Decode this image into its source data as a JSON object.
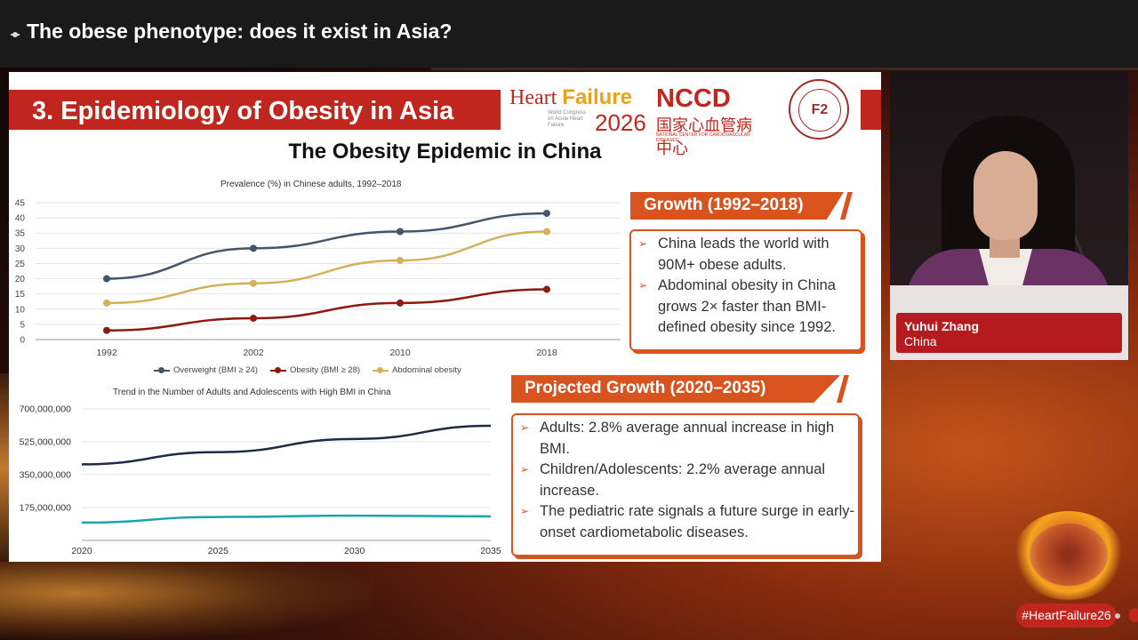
{
  "header": {
    "title": "The obese phenotype: does it exist in Asia?"
  },
  "slide": {
    "section_title": "3. Epidemiology of Obesity in Asia",
    "logo_hf": {
      "line1a": "Heart",
      "line1b": "Failure",
      "year": "2026",
      "small": "World Congress on Acute Heart Failure"
    },
    "logo_nccd": {
      "name": "NCCD",
      "chinese": "国家心血管病中心",
      "small": "NATIONAL CENTER FOR CARDIOVASCULAR DISEASES"
    },
    "main_title": "The Obesity Epidemic in China",
    "chart1_title": "Prevalence (%) in Chinese adults, 1992–2018",
    "chart2_title": "Trend in the Number of Adults and Adolescents with High BMI in China",
    "growth": {
      "heading": "Growth (1992–2018)",
      "bullets": [
        "China leads the world with 90M+ obese adults.",
        "Abdominal obesity in China grows 2× faster than BMI-defined obesity since 1992."
      ]
    },
    "projected": {
      "heading": "Projected Growth (2020–2035)",
      "bullets": [
        "Adults: 2.8% average annual increase in high BMI.",
        "Children/Adolescents: 2.2% average annual increase.",
        "The pediatric rate signals a future surge in early-onset cardiometabolic diseases."
      ]
    }
  },
  "speaker": {
    "name": "Yuhui Zhang",
    "country": "China"
  },
  "hashtag": "#HeartFailure26",
  "colors": {
    "red": "#c0261e",
    "orange": "#d9531e",
    "overweight": "#44546a",
    "obesity": "#8b1a10",
    "abdominal": "#d4b05a",
    "adults": "#1f2b45",
    "children": "#1aa3b0"
  },
  "chart_data": [
    {
      "type": "line",
      "title": "Prevalence (%) in Chinese adults, 1992–2018",
      "categories": [
        "1992",
        "2002",
        "2010",
        "2018"
      ],
      "ylim": [
        0,
        45
      ],
      "yticks": [
        0,
        5,
        10,
        15,
        20,
        25,
        30,
        35,
        40,
        45
      ],
      "series": [
        {
          "name": "Overweight (BMI ≥ 24)",
          "values": [
            20,
            30,
            35.5,
            41.5
          ]
        },
        {
          "name": "Obesity (BMI ≥ 28)",
          "values": [
            3,
            7,
            12,
            16.5
          ]
        },
        {
          "name": "Abdominal obesity",
          "values": [
            12,
            18.5,
            26,
            35.5
          ]
        }
      ],
      "legend": "bottom"
    },
    {
      "type": "line",
      "title": "Trend in the Number of Adults and Adolescents with High BMI in China",
      "x": [
        2020,
        2025,
        2030,
        2035
      ],
      "xticks": [
        "2020",
        "2025",
        "2030",
        "2035"
      ],
      "ylim": [
        0,
        700000000
      ],
      "yticks": [
        175000000,
        350000000,
        525000000,
        700000000
      ],
      "ytick_labels": [
        "175,000,000",
        "350,000,000",
        "525,000,000",
        "700,000,000"
      ],
      "series": [
        {
          "values": [
            405000000,
            470000000,
            540000000,
            610000000
          ]
        },
        {
          "values": [
            95000000,
            125000000,
            132000000,
            128000000
          ]
        }
      ]
    }
  ]
}
